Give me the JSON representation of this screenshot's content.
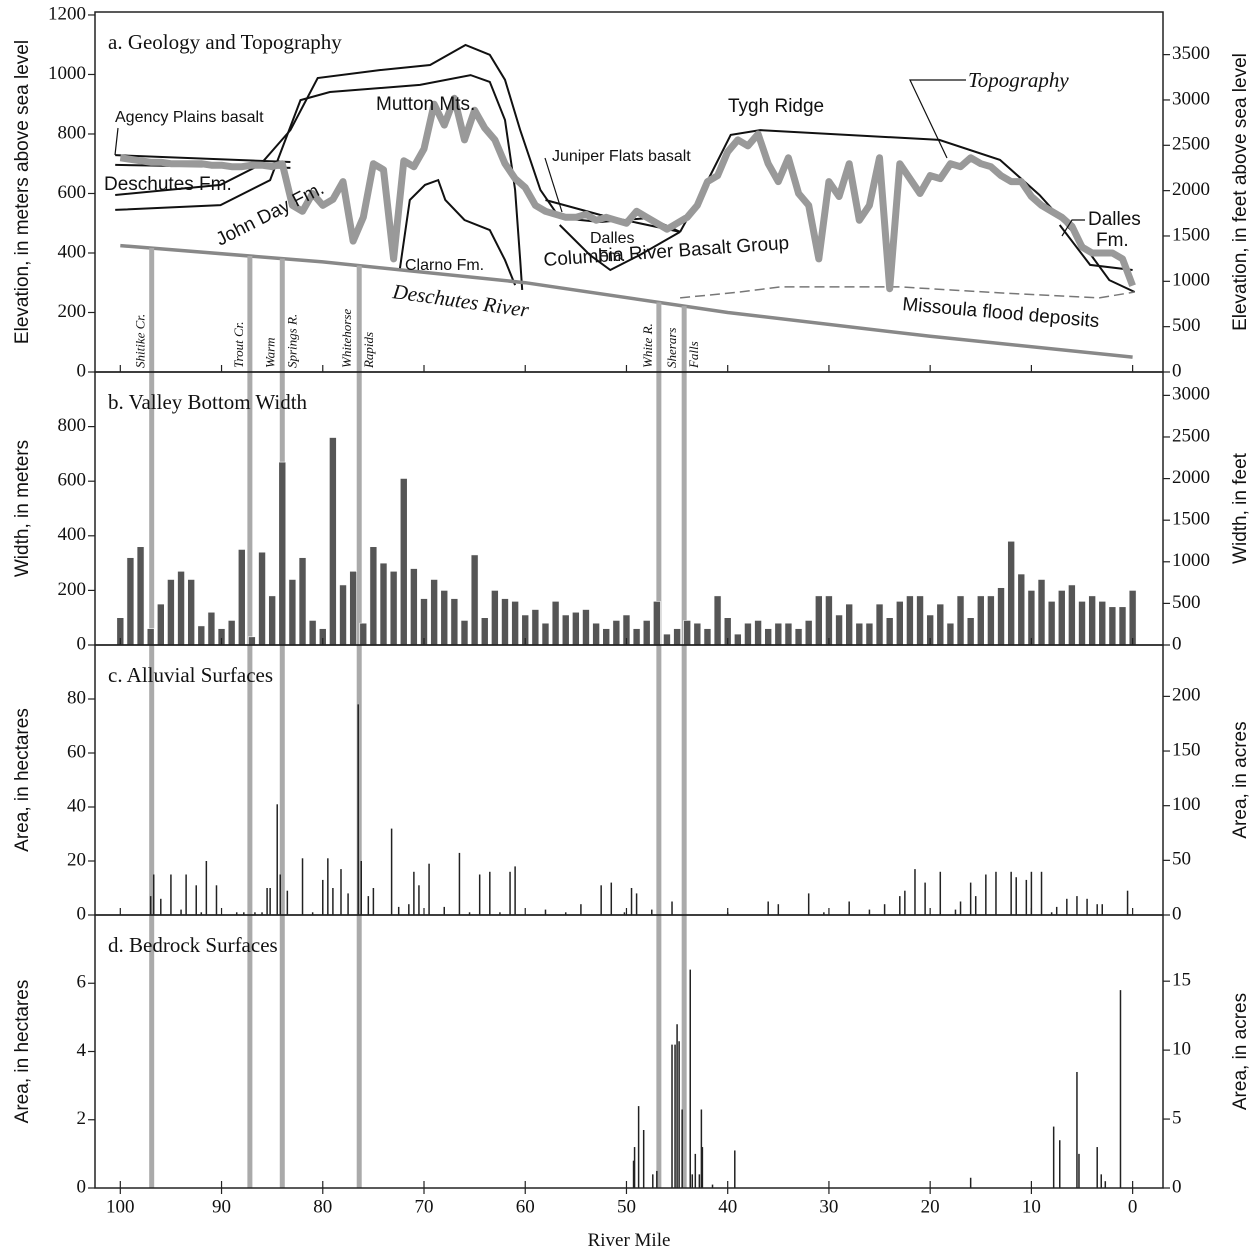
{
  "chart_data": [
    {
      "type": "line",
      "title": "a. Geology and Topography",
      "ylabel": "Elevation, in meters above sea level",
      "y2label": "Elevation, in feet above sea level",
      "xlim": [
        102.5,
        -3
      ],
      "ylim": [
        0,
        1210
      ],
      "yticks": [
        0,
        200,
        400,
        600,
        800,
        1000,
        1200
      ],
      "y2lim": [
        0,
        3970
      ],
      "y2ticks": [
        0,
        500,
        1000,
        1500,
        2000,
        2500,
        3000,
        3500
      ],
      "series": [
        {
          "name": "Topography",
          "color": "#999999",
          "x": [
            100,
            99,
            98,
            97,
            96,
            95,
            94,
            93,
            92,
            91,
            90,
            89,
            88,
            87,
            86,
            85,
            84,
            83,
            82,
            81,
            80,
            79,
            78,
            77,
            76,
            75,
            74,
            73,
            72,
            71,
            70,
            69,
            68,
            67,
            66,
            65,
            64,
            63,
            62,
            61,
            60,
            59,
            58,
            57,
            56,
            55,
            54,
            53,
            52,
            51,
            50,
            49,
            48,
            47,
            46,
            45,
            44,
            43,
            42,
            41,
            40,
            39,
            38,
            37,
            36,
            35,
            34,
            33,
            32,
            31,
            30,
            29,
            28,
            27,
            26,
            25,
            24,
            23,
            22,
            21,
            20,
            19,
            18,
            17,
            16,
            15,
            14,
            13,
            12,
            11,
            10,
            9,
            8,
            7,
            6,
            5,
            4,
            3,
            2,
            1,
            0
          ],
          "values": [
            720,
            715,
            710,
            705,
            705,
            700,
            700,
            700,
            700,
            695,
            695,
            690,
            690,
            695,
            695,
            690,
            700,
            560,
            540,
            600,
            560,
            580,
            640,
            440,
            520,
            700,
            680,
            380,
            710,
            690,
            750,
            900,
            830,
            920,
            780,
            880,
            820,
            780,
            700,
            650,
            620,
            560,
            540,
            530,
            520,
            520,
            530,
            510,
            520,
            510,
            500,
            540,
            520,
            500,
            480,
            500,
            520,
            560,
            640,
            660,
            740,
            780,
            760,
            800,
            700,
            640,
            720,
            600,
            560,
            380,
            640,
            590,
            700,
            510,
            560,
            720,
            280,
            700,
            650,
            600,
            660,
            650,
            700,
            690,
            720,
            700,
            690,
            660,
            640,
            640,
            590,
            560,
            540,
            520,
            490,
            420,
            400,
            400,
            400,
            380,
            290
          ]
        },
        {
          "name": "Deschutes River",
          "color": "#888888",
          "x": [
            100,
            80,
            60,
            40,
            20,
            0
          ],
          "values": [
            425,
            370,
            300,
            200,
            120,
            50
          ]
        }
      ],
      "contacts": [
        {
          "x": [
            100.5,
            83.2
          ],
          "values": [
            729,
            706
          ]
        },
        {
          "x": [
            100.5,
            83.2
          ],
          "values": [
            696,
            686
          ]
        },
        {
          "x": [
            100.5,
            90.1,
            86.2,
            83.2,
            80.5,
            74.3,
            69.4,
            65.9,
            63.5,
            62.0,
            60.5,
            58.5,
            56.6,
            52.6,
            47.7,
            44.7
          ],
          "values": [
            595,
            629,
            696,
            813,
            988,
            1015,
            1032,
            1099,
            1066,
            982,
            813,
            612,
            518,
            504,
            518,
            471
          ]
        },
        {
          "x": [
            100.5,
            90.1,
            85.2,
            82.2,
            79.3,
            70.4,
            65.4,
            63.5,
            62.0,
            61.0,
            60.5,
            60.3
          ],
          "values": [
            545,
            561,
            645,
            914,
            941,
            965,
            998,
            975,
            847,
            612,
            376,
            276
          ]
        },
        {
          "x": [
            72.4,
            71.4,
            69.9,
            68.6,
            67.9,
            66.0,
            63.5,
            62.0,
            61.0
          ],
          "values": [
            343,
            578,
            629,
            645,
            578,
            511,
            477,
            376,
            292
          ]
        },
        {
          "x": [
            56.6,
            53.6,
            51.6,
            48.7,
            44.7
          ],
          "values": [
            494,
            393,
            343,
            393,
            471
          ]
        },
        {
          "x": [
            58.0,
            52.6,
            44.7
          ],
          "values": [
            578,
            528,
            471
          ]
        },
        {
          "x": [
            44.7,
            42.7,
            39.7,
            36.8,
            19.1,
            13.1,
            9.2,
            5.2,
            2.3,
            -0.2
          ],
          "values": [
            471,
            595,
            797,
            813,
            780,
            713,
            595,
            444,
            309,
            269
          ]
        },
        {
          "x": [
            7.2,
            4.2,
            0
          ],
          "values": [
            494,
            360,
            343
          ]
        },
        {
          "x": [
            44.7,
            38.8,
            34.8,
            23.0,
            13.1,
            3.3,
            -0.2
          ],
          "values": [
            249,
            269,
            286,
            286,
            266,
            249,
            269
          ],
          "dash": true
        }
      ],
      "annotations": [
        "Agency Plains basalt",
        "Mutton Mts.",
        "Tygh Ridge",
        "Juniper Flats basalt",
        "Deschutes Fm.",
        "John Day Fm.",
        "Dalles",
        "Fm.",
        "Clarno Fm.",
        "Columbia River Basalt Group",
        "Missoula flood deposits",
        "Dalles",
        "Fm."
      ],
      "tributaries": [
        {
          "mile": 96.9,
          "label": [
            "Shitike Cr."
          ]
        },
        {
          "mile": 87.2,
          "label": [
            "Trout Cr."
          ]
        },
        {
          "mile": 84.0,
          "label": [
            "Warm",
            "Springs R."
          ]
        },
        {
          "mile": 76.4,
          "label": [
            "Whitehorse",
            "Rapids"
          ]
        },
        {
          "mile": 46.8,
          "label": [
            "White R."
          ]
        },
        {
          "mile": 44.3,
          "label": [
            "Sherars",
            "Falls"
          ]
        }
      ]
    },
    {
      "type": "bar",
      "title": "b. Valley Bottom Width",
      "color": "#555555",
      "ylabel": "Width, in meters",
      "y2label": "Width, in feet",
      "xlim": [
        102.5,
        -3
      ],
      "ylim": [
        0,
        1000
      ],
      "yticks": [
        0,
        200,
        400,
        600,
        800
      ],
      "y2lim": [
        0,
        3281
      ],
      "y2ticks": [
        0,
        500,
        1000,
        1500,
        2000,
        2500,
        3000
      ],
      "x": [
        100,
        99,
        98,
        97,
        96,
        95,
        94,
        93,
        92,
        91,
        90,
        89,
        88,
        87,
        86,
        85,
        84,
        83,
        82,
        81,
        80,
        79,
        78,
        77,
        76,
        75,
        74,
        73,
        72,
        71,
        70,
        69,
        68,
        67,
        66,
        65,
        64,
        63,
        62,
        61,
        60,
        59,
        58,
        57,
        56,
        55,
        54,
        53,
        52,
        51,
        50,
        49,
        48,
        47,
        46,
        45,
        44,
        43,
        42,
        41,
        40,
        39,
        38,
        37,
        36,
        35,
        34,
        33,
        32,
        31,
        30,
        29,
        28,
        27,
        26,
        25,
        24,
        23,
        22,
        21,
        20,
        19,
        18,
        17,
        16,
        15,
        14,
        13,
        12,
        11,
        10,
        9,
        8,
        7,
        6,
        5,
        4,
        3,
        2,
        1,
        0
      ],
      "values": [
        100,
        320,
        360,
        60,
        150,
        240,
        270,
        240,
        70,
        120,
        60,
        90,
        350,
        30,
        340,
        180,
        670,
        240,
        320,
        90,
        60,
        760,
        220,
        270,
        80,
        360,
        300,
        270,
        610,
        280,
        170,
        240,
        200,
        170,
        90,
        330,
        100,
        200,
        170,
        160,
        110,
        130,
        80,
        160,
        110,
        120,
        130,
        80,
        60,
        90,
        110,
        60,
        90,
        160,
        40,
        60,
        90,
        80,
        60,
        180,
        100,
        40,
        80,
        90,
        60,
        80,
        80,
        60,
        90,
        180,
        180,
        110,
        150,
        80,
        80,
        150,
        100,
        160,
        180,
        180,
        110,
        150,
        80,
        180,
        100,
        180,
        180,
        210,
        380,
        260,
        200,
        240,
        160,
        200,
        220,
        160,
        180,
        160,
        140,
        140,
        200
      ]
    },
    {
      "type": "stem",
      "title": "c. Alluvial Surfaces",
      "color": "#222222",
      "ylabel": "Area, in hectares",
      "y2label": "Area, in acres",
      "xlim": [
        102.5,
        -3
      ],
      "ylim": [
        0,
        100
      ],
      "yticks": [
        0,
        20,
        40,
        60,
        80
      ],
      "y2lim": [
        0,
        247
      ],
      "y2ticks": [
        0,
        50,
        100,
        150,
        200
      ],
      "x": [
        97,
        96.7,
        96,
        95,
        94,
        93.5,
        92.5,
        92,
        91.5,
        90.5,
        88.5,
        87.8,
        86.7,
        86,
        85.5,
        85.2,
        84.5,
        84.2,
        83.5,
        82,
        81,
        80,
        79.5,
        79,
        78.2,
        77.5,
        76.5,
        76.2,
        75.5,
        75,
        73.2,
        72.5,
        71.5,
        71,
        70.5,
        69.5,
        68,
        66.5,
        65.5,
        64.5,
        63.5,
        62.5,
        61.5,
        61,
        58,
        56,
        54.5,
        52.5,
        51.5,
        50.2,
        49.5,
        49,
        47.5,
        45.5,
        40,
        36,
        35,
        32,
        30.5,
        28,
        26,
        24.5,
        23,
        22.5,
        21.5,
        20.5,
        19,
        17.5,
        17,
        16,
        15.5,
        14.5,
        13.5,
        12,
        11.5,
        10.5,
        10,
        9,
        8,
        7.5,
        6.5,
        5.5,
        4.5,
        3.5,
        3,
        0.5
      ],
      "values": [
        7,
        15,
        6,
        15,
        2,
        15,
        11,
        1,
        20,
        11,
        1,
        1,
        1,
        1,
        10,
        10,
        41,
        15,
        9,
        21,
        1,
        13,
        21,
        10,
        17,
        8,
        78,
        20,
        7,
        10,
        32,
        3,
        4,
        16,
        11,
        19,
        3,
        23,
        1,
        15,
        16,
        1,
        16,
        18,
        2,
        1,
        4,
        11,
        12,
        1,
        10,
        8,
        2,
        5,
        1,
        5,
        4,
        8,
        1,
        5,
        2,
        4,
        7,
        9,
        17,
        12,
        16,
        2,
        5,
        12,
        7,
        15,
        16,
        16,
        14,
        13,
        16,
        16,
        1,
        3,
        6,
        7,
        6,
        4,
        4,
        9
      ]
    },
    {
      "type": "stem",
      "title": "d. Bedrock Surfaces",
      "color": "#222222",
      "ylabel": "Area, in hectares",
      "y2label": "Area, in acres",
      "xlabel": "River Mile",
      "xlim": [
        102.5,
        -3
      ],
      "xticks": [
        100,
        90,
        80,
        70,
        60,
        50,
        40,
        30,
        20,
        10,
        0
      ],
      "ylim": [
        0,
        8
      ],
      "yticks": [
        0,
        2,
        4,
        6
      ],
      "y2lim": [
        0,
        19.8
      ],
      "y2ticks": [
        0,
        5,
        10,
        15
      ],
      "x": [
        49.3,
        49.2,
        48.8,
        48.3,
        47.4,
        47,
        45.5,
        45.2,
        45,
        44.8,
        44.5,
        43.7,
        43.5,
        43.2,
        42.8,
        42.6,
        42.5,
        41.5,
        39.3,
        16,
        7.8,
        7.2,
        5.5,
        5.3,
        3.5,
        3.1,
        2.7,
        1.2
      ],
      "values": [
        0.8,
        1.2,
        2.4,
        1.7,
        0.4,
        0.5,
        4.2,
        4.2,
        4.8,
        4.3,
        2.3,
        6.4,
        0.4,
        1.0,
        0.4,
        2.3,
        1.2,
        0.1,
        1.1,
        0.3,
        1.8,
        1.4,
        3.4,
        1.0,
        1.2,
        0.4,
        0.2,
        5.8
      ]
    }
  ]
}
